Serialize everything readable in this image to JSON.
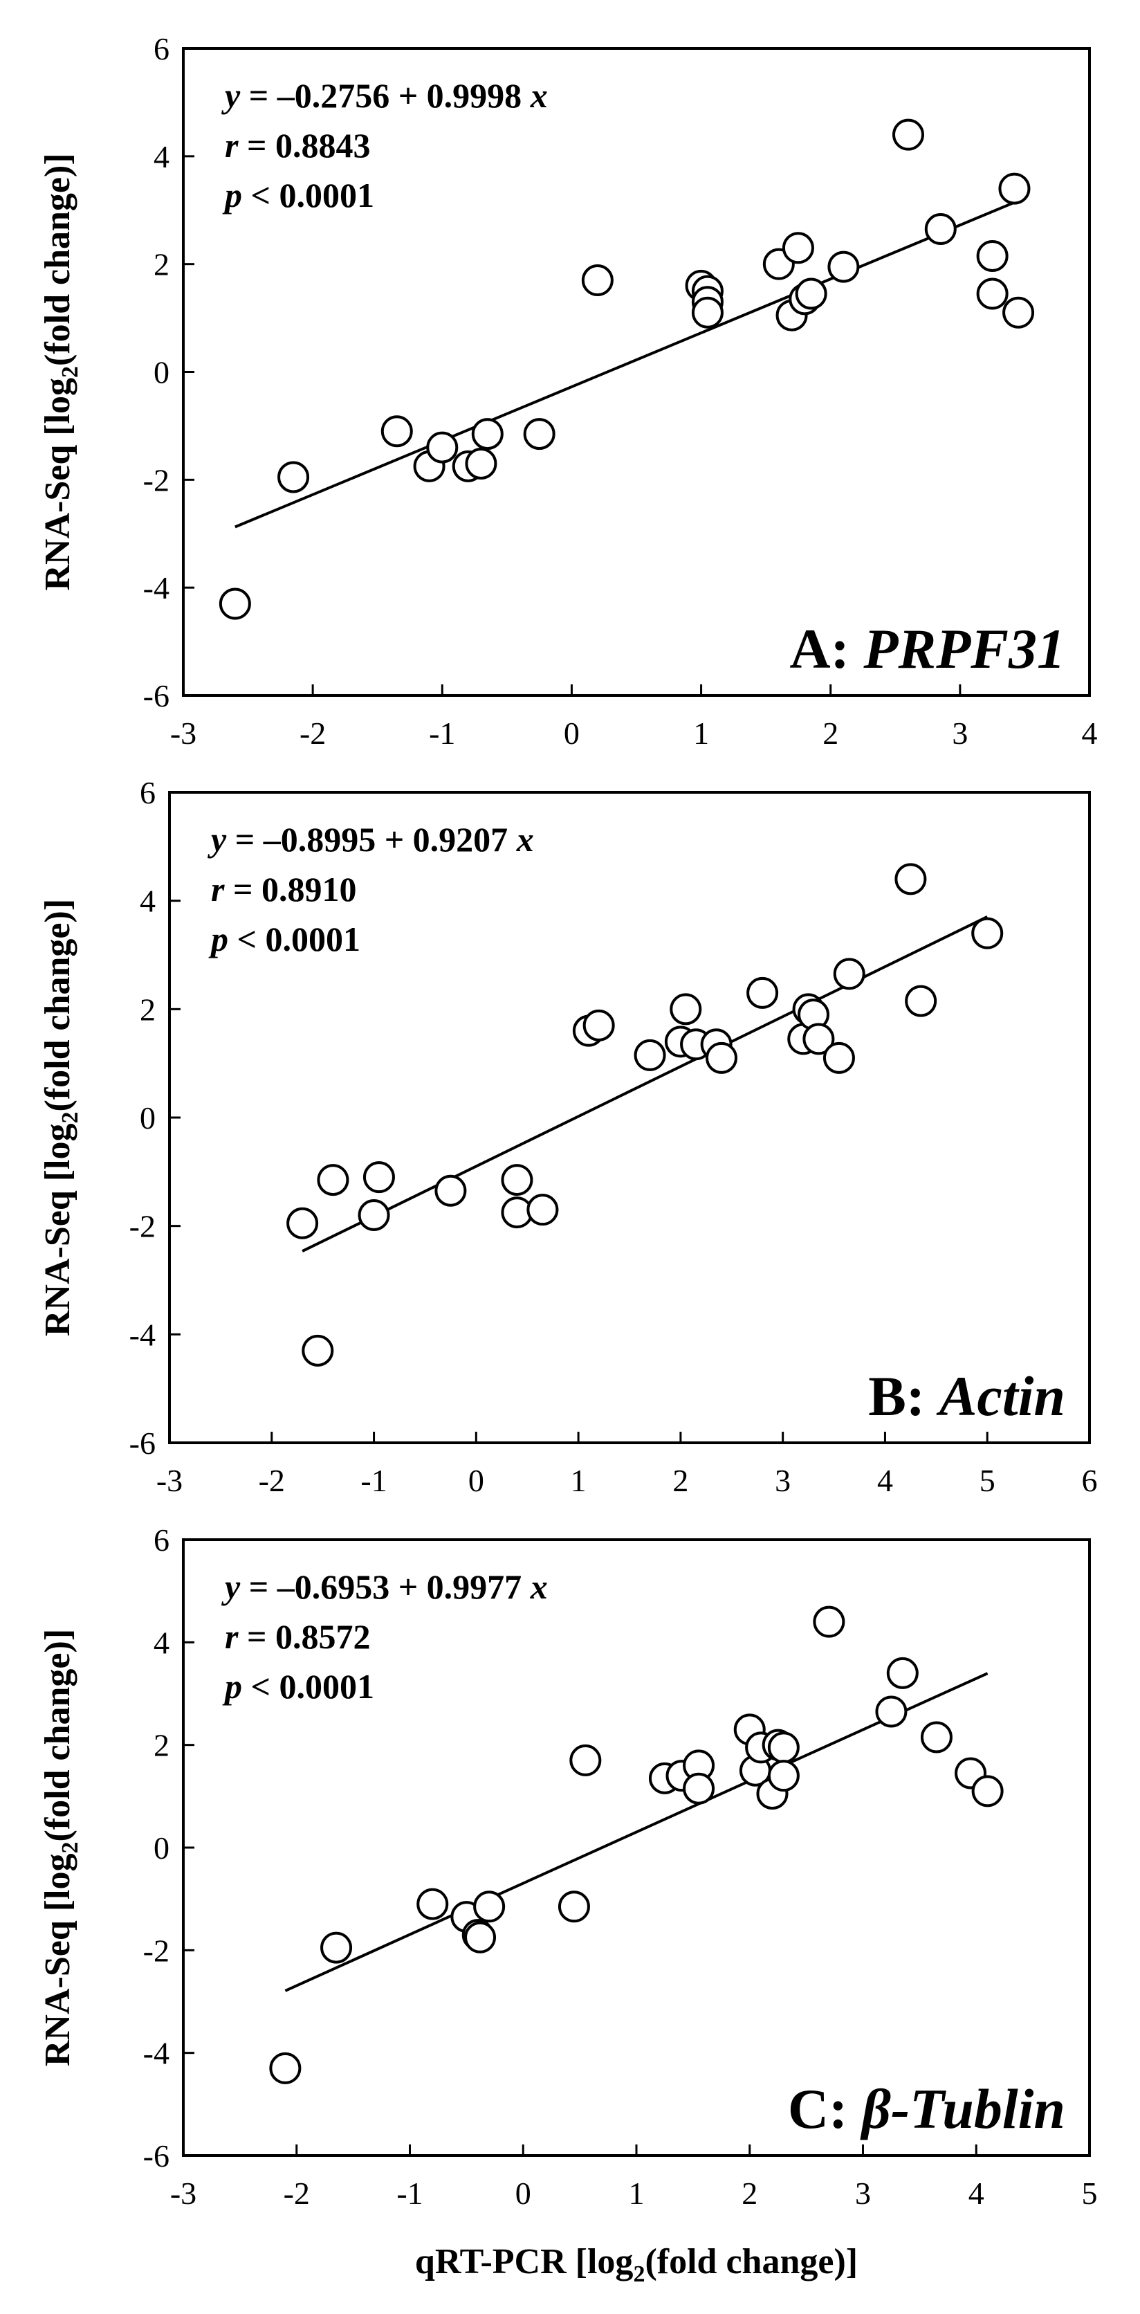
{
  "figure": {
    "xlabel_prefix": "qRT-PCR [log",
    "xlabel_sub": "2",
    "xlabel_suffix": "(fold change)]",
    "ylabel_prefix": "RNA-Seq [log",
    "ylabel_sub": "2",
    "ylabel_suffix": "(fold change)]",
    "colors": {
      "axis": "#000000",
      "marker_fill": "#ffffff",
      "marker_stroke": "#000000"
    }
  },
  "chart_data": [
    {
      "type": "scatter",
      "panel_prefix": "A: ",
      "panel_gene": "PRPF31",
      "equation_y": "y",
      "equation_mid": " = –0.2756 + 0.9998 ",
      "equation_x": "x",
      "r_sym": "r",
      "r_text": " = 0.8843",
      "p_sym": "p",
      "p_text": " < 0.0001",
      "xlim": [
        -3,
        4
      ],
      "ylim": [
        -6,
        6
      ],
      "xticks": [
        -3,
        -2,
        -1,
        0,
        1,
        2,
        3,
        4
      ],
      "yticks": [
        -6,
        -4,
        -2,
        0,
        2,
        4,
        6
      ],
      "intercept": -0.2756,
      "slope": 0.9998,
      "fit_x_range": [
        -2.6,
        3.45
      ],
      "x": [
        -2.6,
        -2.15,
        -1.35,
        -1.1,
        -1.0,
        -0.8,
        -0.7,
        -0.65,
        -0.25,
        0.2,
        1.0,
        1.05,
        1.05,
        1.05,
        1.6,
        1.7,
        1.75,
        1.8,
        1.85,
        2.1,
        2.6,
        2.85,
        3.25,
        3.25,
        3.42,
        3.45
      ],
      "y": [
        -4.3,
        -1.95,
        -1.1,
        -1.75,
        -1.4,
        -1.75,
        -1.7,
        -1.15,
        -1.15,
        1.7,
        1.6,
        1.5,
        1.3,
        1.1,
        2.0,
        1.05,
        2.3,
        1.35,
        1.45,
        1.95,
        4.4,
        2.65,
        2.15,
        1.45,
        3.4,
        1.1
      ]
    },
    {
      "type": "scatter",
      "panel_prefix": "B: ",
      "panel_gene": "Actin",
      "equation_y": "y",
      "equation_mid": " = –0.8995 + 0.9207 ",
      "equation_x": "x",
      "r_sym": "r",
      "r_text": " = 0.8910",
      "p_sym": "p",
      "p_text": " < 0.0001",
      "xlim": [
        -3,
        6
      ],
      "ylim": [
        -6,
        6
      ],
      "xticks": [
        -3,
        -2,
        -1,
        0,
        1,
        2,
        3,
        4,
        5,
        6
      ],
      "yticks": [
        -6,
        -4,
        -2,
        0,
        2,
        4,
        6
      ],
      "intercept": -0.8995,
      "slope": 0.9207,
      "fit_x_range": [
        -1.7,
        5.0
      ],
      "x": [
        -1.7,
        -1.55,
        -1.4,
        -1.0,
        -0.95,
        -0.25,
        0.4,
        0.4,
        0.65,
        1.1,
        1.2,
        1.7,
        2.0,
        2.05,
        2.15,
        2.35,
        2.4,
        2.8,
        3.2,
        3.25,
        3.3,
        3.35,
        3.55,
        3.65,
        4.25,
        4.35,
        5.0
      ],
      "y": [
        -1.95,
        -4.3,
        -1.15,
        -1.8,
        -1.1,
        -1.35,
        -1.15,
        -1.75,
        -1.7,
        1.6,
        1.7,
        1.15,
        1.4,
        2.0,
        1.35,
        1.35,
        1.1,
        2.3,
        1.45,
        2.0,
        1.9,
        1.45,
        1.1,
        2.65,
        4.4,
        2.15,
        3.4
      ]
    },
    {
      "type": "scatter",
      "panel_prefix": "C: ",
      "panel_gene": "β-Tublin",
      "equation_y": "y",
      "equation_mid": " = –0.6953 + 0.9977 ",
      "equation_x": "x",
      "r_sym": "r",
      "r_text": " = 0.8572",
      "p_sym": "p",
      "p_text": " < 0.0001",
      "xlim": [
        -3,
        5
      ],
      "ylim": [
        -6,
        6
      ],
      "xticks": [
        -3,
        -2,
        -1,
        0,
        1,
        2,
        3,
        4,
        5
      ],
      "yticks": [
        -6,
        -4,
        -2,
        0,
        2,
        4,
        6
      ],
      "intercept": -0.6953,
      "slope": 0.9977,
      "fit_x_range": [
        -2.1,
        4.1
      ],
      "x": [
        -2.1,
        -1.65,
        -0.8,
        -0.5,
        -0.4,
        -0.38,
        -0.3,
        0.45,
        0.55,
        1.25,
        1.4,
        1.55,
        1.55,
        2.0,
        2.05,
        2.1,
        2.2,
        2.25,
        2.3,
        2.3,
        2.7,
        3.25,
        3.35,
        3.65,
        3.95,
        4.1
      ],
      "y": [
        -4.3,
        -1.95,
        -1.1,
        -1.35,
        -1.7,
        -1.75,
        -1.15,
        -1.15,
        1.7,
        1.35,
        1.4,
        1.6,
        1.15,
        2.3,
        1.5,
        1.95,
        1.05,
        2.0,
        1.95,
        1.4,
        4.4,
        2.65,
        3.4,
        2.15,
        1.45,
        1.1
      ]
    }
  ]
}
